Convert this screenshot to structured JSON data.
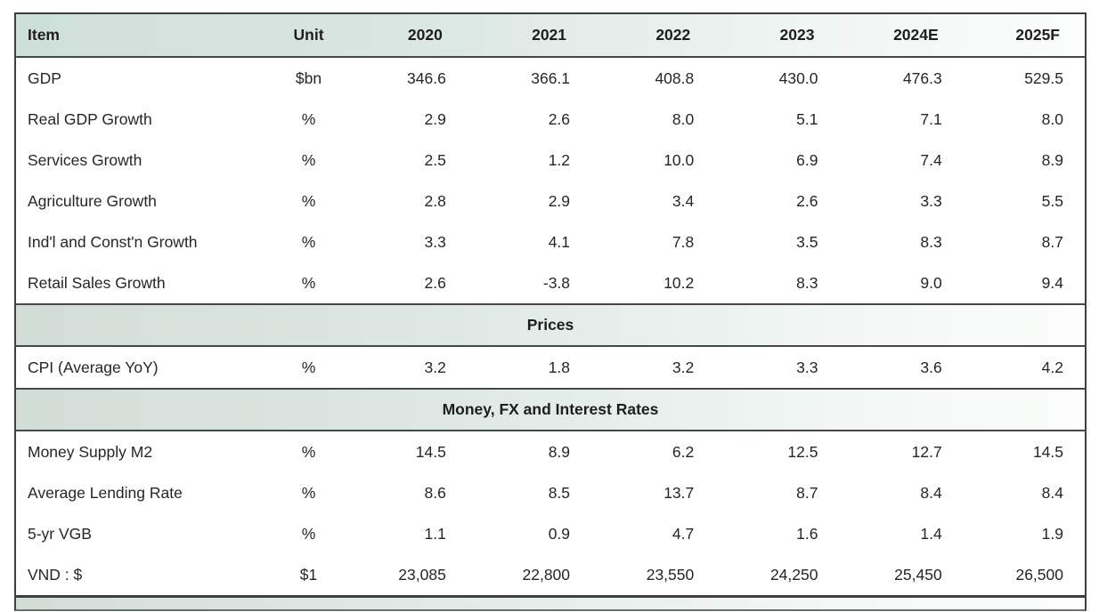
{
  "colors": {
    "border_dark": "#3f3f3f",
    "text": "#262626",
    "header_gradient_left": "#cde0d9",
    "header_gradient_right": "#fcfdfd",
    "section_gradient_left": "#d2ddd8",
    "section_gradient_right": "#fcfdfc"
  },
  "table": {
    "columns": [
      "Item",
      "Unit",
      "2020",
      "2021",
      "2022",
      "2023",
      "2024E",
      "2025F"
    ],
    "column_keys": [
      "item",
      "unit",
      "2020",
      "2021",
      "2022",
      "2023",
      "2024e",
      "2025f"
    ],
    "sections": [
      {
        "title": "",
        "rows": [
          [
            "GDP",
            "$bn",
            "346.6",
            "366.1",
            "408.8",
            "430.0",
            "476.3",
            "529.5"
          ],
          [
            "Real GDP Growth",
            "%",
            "2.9",
            "2.6",
            "8.0",
            "5.1",
            "7.1",
            "8.0"
          ],
          [
            "Services Growth",
            "%",
            "2.5",
            "1.2",
            "10.0",
            "6.9",
            "7.4",
            "8.9"
          ],
          [
            "Agriculture Growth",
            "%",
            "2.8",
            "2.9",
            "3.4",
            "2.6",
            "3.3",
            "5.5"
          ],
          [
            "Ind'l and Const'n Growth",
            "%",
            "3.3",
            "4.1",
            "7.8",
            "3.5",
            "8.3",
            "8.7"
          ],
          [
            "Retail Sales Growth",
            "%",
            "2.6",
            "-3.8",
            "10.2",
            "8.3",
            "9.0",
            "9.4"
          ]
        ]
      },
      {
        "title": "Prices",
        "rows": [
          [
            "CPI (Average YoY)",
            "%",
            "3.2",
            "1.8",
            "3.2",
            "3.3",
            "3.6",
            "4.2"
          ]
        ]
      },
      {
        "title": "Money, FX and Interest Rates",
        "rows": [
          [
            "Money Supply M2",
            "%",
            "14.5",
            "8.9",
            "6.2",
            "12.5",
            "12.7",
            "14.5"
          ],
          [
            "Average Lending Rate",
            "%",
            "8.6",
            "8.5",
            "13.7",
            "8.7",
            "8.4",
            "8.4"
          ],
          [
            "5-yr VGB",
            "%",
            "1.1",
            "0.9",
            "4.7",
            "1.6",
            "1.4",
            "1.9"
          ],
          [
            "VND : $",
            "$1",
            "23,085",
            "22,800",
            "23,550",
            "24,250",
            "25,450",
            "26,500"
          ]
        ]
      }
    ]
  }
}
